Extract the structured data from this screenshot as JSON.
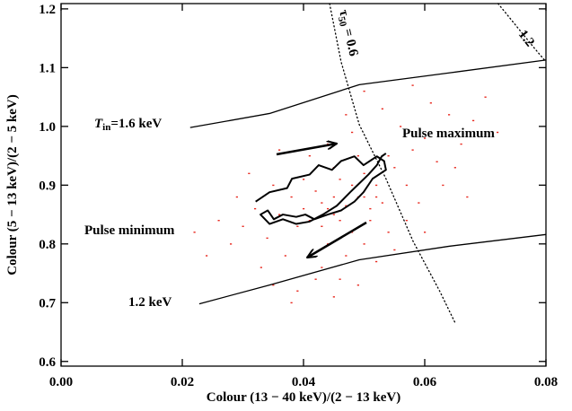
{
  "chart_data": {
    "type": "scatter",
    "x_label": "Colour (13 − 40 keV)/(2 − 13 keV)",
    "y_label": "Colour (5 − 13 keV)/(2 − 5 keV)",
    "xlim": [
      0,
      0.08
    ],
    "ylim": [
      0.592,
      1.209
    ],
    "xticks": [
      {
        "value": 0,
        "label": "0.00"
      },
      0.02,
      0.04,
      0.06,
      0.08
    ],
    "yticks": [
      0.6,
      0.7,
      0.8,
      0.9,
      {
        "value": 1,
        "label": "1.0"
      },
      1.1,
      1.2
    ],
    "annotations": {
      "pulse_max": "Pulse maximum",
      "pulse_min": "Pulse minimum",
      "tin_symbol": "T",
      "tin_sub": "in",
      "tin_rest": "=1.6 keV",
      "low_t": "1.2 keV",
      "tau_symbol": "τ",
      "tau_sub": "50",
      "tau_rest": " = 0.6",
      "tau_high": "1.2"
    },
    "series": [
      {
        "type": "scatter",
        "color": "#e8281e",
        "x": [
          0.047,
          0.045,
          0.05,
          0.043,
          0.052,
          0.041,
          0.048,
          0.046,
          0.055,
          0.039,
          0.044,
          0.049,
          0.058,
          0.036,
          0.042,
          0.051,
          0.053,
          0.038,
          0.047,
          0.057,
          0.034,
          0.06,
          0.045,
          0.05,
          0.032,
          0.054,
          0.043,
          0.062,
          0.04,
          0.048,
          0.03,
          0.056,
          0.037,
          0.064,
          0.052,
          0.035,
          0.046,
          0.059,
          0.028,
          0.066,
          0.041,
          0.055,
          0.033,
          0.061,
          0.044,
          0.049,
          0.026,
          0.068,
          0.039,
          0.057,
          0.031,
          0.053,
          0.045,
          0.063,
          0.024,
          0.07,
          0.036,
          0.05,
          0.042,
          0.06,
          0.029,
          0.065,
          0.038,
          0.054,
          0.047,
          0.072,
          0.022,
          0.058,
          0.035,
          0.067,
          0.044,
          0.049,
          0.046,
          0.051,
          0.043,
          0.048,
          0.052,
          0.04,
          0.05,
          0.045
        ],
        "y": [
          0.865,
          0.85,
          0.88,
          0.87,
          0.9,
          0.84,
          0.82,
          0.91,
          0.93,
          0.83,
          0.8,
          0.95,
          0.96,
          0.85,
          0.89,
          0.84,
          0.87,
          0.88,
          0.78,
          0.9,
          0.81,
          0.98,
          0.93,
          0.8,
          0.86,
          0.82,
          0.76,
          0.94,
          0.91,
          0.99,
          0.83,
          1.0,
          0.78,
          1.02,
          0.77,
          0.9,
          0.74,
          0.87,
          0.8,
          0.97,
          0.95,
          0.79,
          0.76,
          1.04,
          0.97,
          0.73,
          0.84,
          1.01,
          0.72,
          0.84,
          0.92,
          1.03,
          0.71,
          0.9,
          0.78,
          1.05,
          0.96,
          1.06,
          0.74,
          0.82,
          0.88,
          0.93,
          0.7,
          0.95,
          1.02,
          0.99,
          0.82,
          1.07,
          0.73,
          0.88,
          0.86,
          0.88,
          0.84,
          0.86,
          0.83,
          0.9,
          0.88,
          0.86,
          0.92,
          0.88
        ]
      },
      {
        "type": "line",
        "color": "#000000",
        "width": 2,
        "x": [
          0.0321,
          0.0344,
          0.0373,
          0.0381,
          0.041,
          0.0425,
          0.0447,
          0.0462,
          0.0484,
          0.0499,
          0.0521,
          0.0533,
          0.0536,
          0.0514,
          0.0499,
          0.0484,
          0.0462,
          0.044,
          0.0418,
          0.0403,
          0.0388,
          0.0366,
          0.0351,
          0.0341,
          0.0329,
          0.0344,
          0.0366,
          0.0388,
          0.041,
          0.0432,
          0.0455,
          0.0477,
          0.0492,
          0.0507,
          0.0521,
          0.0529,
          0.0536
        ],
        "y": [
          0.872,
          0.888,
          0.895,
          0.911,
          0.918,
          0.934,
          0.926,
          0.941,
          0.949,
          0.934,
          0.949,
          0.941,
          0.926,
          0.911,
          0.888,
          0.872,
          0.857,
          0.85,
          0.842,
          0.85,
          0.846,
          0.85,
          0.842,
          0.857,
          0.85,
          0.834,
          0.842,
          0.834,
          0.838,
          0.85,
          0.865,
          0.888,
          0.903,
          0.918,
          0.934,
          0.949,
          0.954
        ]
      },
      {
        "type": "line",
        "color": "#000000",
        "width": 1.3,
        "x": [
          0.0213,
          0.0344,
          0.0492,
          0.064,
          0.08
        ],
        "y": [
          0.998,
          1.022,
          1.071,
          1.091,
          1.113
        ]
      },
      {
        "type": "line",
        "color": "#000000",
        "width": 1.3,
        "x": [
          0.0228,
          0.0344,
          0.0492,
          0.064,
          0.08
        ],
        "y": [
          0.698,
          0.73,
          0.773,
          0.796,
          0.816
        ]
      },
      {
        "type": "line",
        "color": "#000000",
        "width": 1.3,
        "linestyle": "dotted",
        "x": [
          0.0443,
          0.0462,
          0.0492,
          0.0536,
          0.0581,
          0.0625,
          0.065
        ],
        "y": [
          1.209,
          1.11,
          1.003,
          0.911,
          0.804,
          0.719,
          0.666
        ]
      },
      {
        "type": "line",
        "color": "#000000",
        "width": 1.3,
        "linestyle": "dotted",
        "x": [
          0.0721,
          0.0751,
          0.0781,
          0.08
        ],
        "y": [
          1.209,
          1.171,
          1.133,
          1.11
        ]
      }
    ]
  }
}
